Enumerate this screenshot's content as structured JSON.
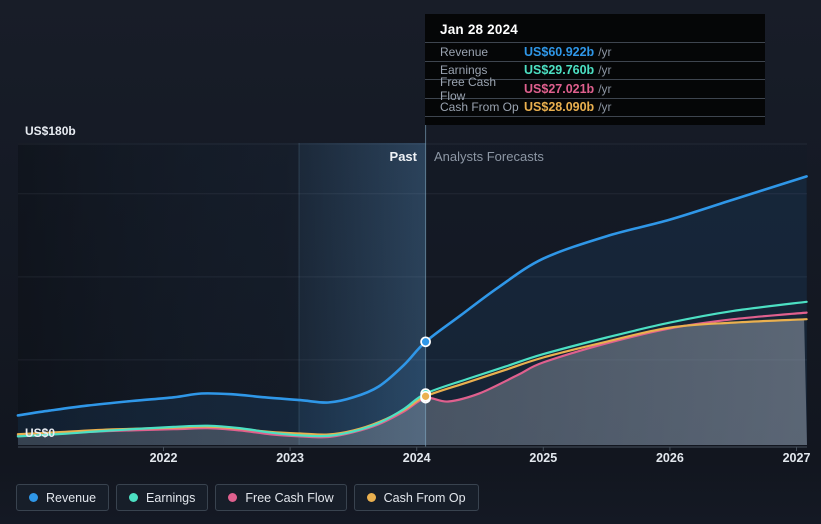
{
  "tooltip": {
    "date": "Jan 28 2024",
    "rows": [
      {
        "label": "Revenue",
        "value": "US$60.922b",
        "suffix": "/yr"
      },
      {
        "label": "Earnings",
        "value": "US$29.760b",
        "suffix": "/yr"
      },
      {
        "label": "Free Cash Flow",
        "value": "US$27.021b",
        "suffix": "/yr"
      },
      {
        "label": "Cash From Op",
        "value": "US$28.090b",
        "suffix": "/yr"
      }
    ]
  },
  "chart_data": {
    "type": "line",
    "title": "",
    "x_axis": {
      "tick_labels": [
        "2022",
        "2023",
        "2024",
        "2025",
        "2026",
        "2027"
      ],
      "tick_years": [
        2022,
        2023,
        2024,
        2025,
        2026,
        2027
      ],
      "range_years": [
        2020.85,
        2027.1
      ]
    },
    "y_axis": {
      "unit": "US$ billions per year",
      "range": [
        0,
        180
      ],
      "top_label": "US$180b",
      "zero_label": "US$0",
      "gridline_values": [
        50,
        100,
        150,
        180
      ],
      "grid": true
    },
    "divider": {
      "year": 2024.07,
      "past_label": "Past",
      "forecast_label": "Analysts Forecasts",
      "highlight_band_years": [
        2023.07,
        2024.07
      ]
    },
    "marker": {
      "date": "Jan 28 2024",
      "year": 2024.07,
      "values_b": [
        60.922,
        29.76,
        27.021,
        28.09
      ]
    },
    "legend_position": "bottom-left",
    "series": [
      {
        "name": "Revenue",
        "color": "#2f97e8",
        "points": [
          [
            2020.85,
            16.6
          ],
          [
            2021.1,
            19.5
          ],
          [
            2021.4,
            22.5
          ],
          [
            2021.75,
            25.3
          ],
          [
            2022.08,
            27.5
          ],
          [
            2022.3,
            29.8
          ],
          [
            2022.55,
            29.3
          ],
          [
            2022.8,
            27.5
          ],
          [
            2023.08,
            25.8
          ],
          [
            2023.3,
            24.4
          ],
          [
            2023.5,
            27.5
          ],
          [
            2023.7,
            34
          ],
          [
            2023.9,
            47
          ],
          [
            2024.07,
            60.922
          ],
          [
            2024.35,
            77
          ],
          [
            2024.65,
            94
          ],
          [
            2025,
            111
          ],
          [
            2025.5,
            124.5
          ],
          [
            2026,
            134.5
          ],
          [
            2026.5,
            146.5
          ],
          [
            2027.08,
            160.5
          ]
        ]
      },
      {
        "name": "Earnings",
        "color": "#4ce0c3",
        "points": [
          [
            2020.85,
            4.0
          ],
          [
            2021.2,
            5.5
          ],
          [
            2021.6,
            7.6
          ],
          [
            2022.08,
            9.7
          ],
          [
            2022.35,
            10.4
          ],
          [
            2022.6,
            9.0
          ],
          [
            2022.85,
            6.2
          ],
          [
            2023.08,
            4.6
          ],
          [
            2023.3,
            4.3
          ],
          [
            2023.5,
            7.0
          ],
          [
            2023.7,
            12.0
          ],
          [
            2023.9,
            20.5
          ],
          [
            2024.07,
            29.76
          ],
          [
            2024.4,
            38.5
          ],
          [
            2024.7,
            46
          ],
          [
            2025,
            53.5
          ],
          [
            2025.5,
            63.5
          ],
          [
            2026,
            72.5
          ],
          [
            2026.5,
            79.5
          ],
          [
            2027.08,
            85
          ]
        ]
      },
      {
        "name": "Free Cash Flow",
        "color": "#e0608e",
        "points": [
          [
            2020.85,
            4.6
          ],
          [
            2021.2,
            5.9
          ],
          [
            2021.6,
            7.3
          ],
          [
            2022.08,
            8.3
          ],
          [
            2022.35,
            8.9
          ],
          [
            2022.6,
            7.6
          ],
          [
            2022.85,
            5.2
          ],
          [
            2023.08,
            4.0
          ],
          [
            2023.3,
            3.6
          ],
          [
            2023.5,
            6.5
          ],
          [
            2023.7,
            11.3
          ],
          [
            2023.9,
            19.0
          ],
          [
            2024.07,
            27.021
          ],
          [
            2024.25,
            25.0
          ],
          [
            2024.5,
            30.0
          ],
          [
            2024.8,
            41.0
          ],
          [
            2025,
            48.5
          ],
          [
            2025.5,
            60.0
          ],
          [
            2026,
            69.0
          ],
          [
            2026.5,
            74.5
          ],
          [
            2027.08,
            78.5
          ]
        ]
      },
      {
        "name": "Cash From Op",
        "color": "#eab04f",
        "points": [
          [
            2020.85,
            5.3
          ],
          [
            2021.2,
            6.6
          ],
          [
            2021.6,
            8.2
          ],
          [
            2022.08,
            9.2
          ],
          [
            2022.35,
            9.9
          ],
          [
            2022.6,
            8.6
          ],
          [
            2022.85,
            6.6
          ],
          [
            2023.08,
            5.7
          ],
          [
            2023.3,
            5.1
          ],
          [
            2023.5,
            7.5
          ],
          [
            2023.7,
            12.5
          ],
          [
            2023.9,
            20.0
          ],
          [
            2024.07,
            28.09
          ],
          [
            2024.4,
            36.5
          ],
          [
            2024.7,
            44.0
          ],
          [
            2025,
            51.5
          ],
          [
            2025.5,
            61.0
          ],
          [
            2026,
            69.5
          ],
          [
            2026.5,
            72.5
          ],
          [
            2027.08,
            74.5
          ]
        ]
      }
    ]
  }
}
